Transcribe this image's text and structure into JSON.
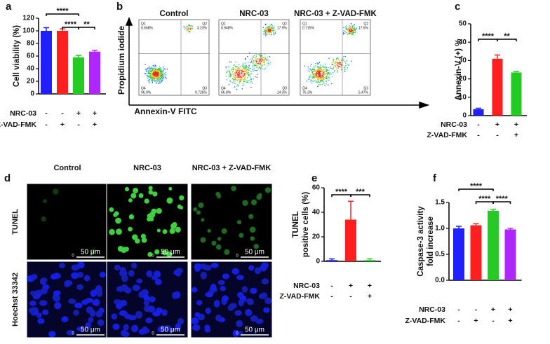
{
  "chart_data": [
    {
      "type": "bar",
      "label": "a",
      "ylabel": "Cell viability (%)",
      "ylim": [
        0,
        120
      ],
      "yticks": [
        0,
        20,
        40,
        60,
        80,
        100,
        120
      ],
      "values": [
        100,
        100,
        58,
        67
      ],
      "errors": [
        5,
        3,
        3,
        2
      ],
      "colors": [
        "#1f1fff",
        "#ff1f1f",
        "#22cc22",
        "#b026ff"
      ],
      "conditions": [
        {
          "name": "NRC-03",
          "values": [
            "-",
            "-",
            "+",
            "+"
          ]
        },
        {
          "name": "Z-VAD-FMK",
          "values": [
            "-",
            "+",
            "-",
            "+"
          ]
        }
      ],
      "significance": [
        {
          "pair": [
            0,
            2
          ],
          "label": "****"
        },
        {
          "pair": [
            1,
            2
          ],
          "label": "****"
        },
        {
          "pair": [
            2,
            3
          ],
          "label": "**"
        }
      ]
    },
    {
      "type": "bar",
      "label": "c",
      "ylabel": "Annexin-V (+) %",
      "ylim": [
        0,
        50
      ],
      "yticks": [
        0,
        10,
        20,
        30,
        40,
        50
      ],
      "values": [
        3.5,
        31,
        23.5
      ],
      "errors": [
        0.5,
        2,
        0.5
      ],
      "colors": [
        "#1f1fff",
        "#ff1f1f",
        "#22cc22"
      ],
      "conditions": [
        {
          "name": "NRC-03",
          "values": [
            "-",
            "+",
            "+"
          ]
        },
        {
          "name": "Z-VAD-FMK",
          "values": [
            "-",
            "-",
            "+"
          ]
        }
      ],
      "significance": [
        {
          "pair": [
            0,
            1
          ],
          "label": "****"
        },
        {
          "pair": [
            1,
            2
          ],
          "label": "**"
        }
      ]
    },
    {
      "type": "bar",
      "label": "e",
      "ylabel": [
        "TUNEL",
        "positive cells (%)"
      ],
      "ylim": [
        0,
        60
      ],
      "yticks": [
        0,
        20,
        40,
        60
      ],
      "values": [
        1,
        34,
        1
      ],
      "errors": [
        1,
        15,
        1
      ],
      "colors": [
        "#1f1fff",
        "#ff1f1f",
        "#22cc22"
      ],
      "conditions": [
        {
          "name": "NRC-03",
          "values": [
            "-",
            "+",
            "+"
          ]
        },
        {
          "name": "Z-VAD-FMK",
          "values": [
            "-",
            "-",
            "+"
          ]
        }
      ],
      "significance": [
        {
          "pair": [
            0,
            1
          ],
          "label": "****"
        },
        {
          "pair": [
            1,
            2
          ],
          "label": "***"
        }
      ]
    },
    {
      "type": "bar",
      "label": "f",
      "ylabel": [
        "Caspase-3 activity",
        "fold increase"
      ],
      "ylim": [
        0,
        1.5
      ],
      "yticks": [
        {
          "value": 0,
          "label": "0.0"
        },
        0.5,
        {
          "value": 1,
          "label": "1.0"
        },
        1.5
      ],
      "values": [
        1.0,
        1.06,
        1.34,
        0.98
      ],
      "errors": [
        0.04,
        0.03,
        0.03,
        0.02
      ],
      "colors": [
        "#1f1fff",
        "#ff1f1f",
        "#22cc22",
        "#b026ff"
      ],
      "conditions": [
        {
          "name": "NRC-03",
          "values": [
            "-",
            "-",
            "+",
            "+"
          ]
        },
        {
          "name": "Z-VAD-FMK",
          "values": [
            "-",
            "+",
            "-",
            "+"
          ]
        }
      ],
      "significance": [
        {
          "pair": [
            0,
            2
          ],
          "label": "****"
        },
        {
          "pair": [
            1,
            2
          ],
          "label": "****"
        },
        {
          "pair": [
            2,
            3
          ],
          "label": "****"
        }
      ]
    }
  ],
  "flow_panel": {
    "label": "b",
    "ylabel": "Propidium iodide",
    "xlabel": "Annexin-V FITC",
    "plots": [
      {
        "title": "Control",
        "quadrants": [
          {
            "name": "Q1",
            "value": "0.668%"
          },
          {
            "name": "Q2",
            "value": "3.23%"
          },
          {
            "name": "Q3",
            "value": "0.726%"
          },
          {
            "name": "Q4",
            "value": "96.0%"
          }
        ]
      },
      {
        "title": "NRC-03",
        "quadrants": [
          {
            "name": "Q1",
            "value": "0.948%"
          },
          {
            "name": "Q2",
            "value": "17.9%"
          },
          {
            "name": "Q3",
            "value": "14.3%"
          },
          {
            "name": "Q4",
            "value": "66.8%"
          }
        ]
      },
      {
        "title": "NRC-03 + Z-VAD-FMK",
        "quadrants": [
          {
            "name": "Q1",
            "value": "0.715%"
          },
          {
            "name": "Q2",
            "value": "17.6%"
          },
          {
            "name": "Q3",
            "value": "5.47%"
          },
          {
            "name": "Q4",
            "value": "76.3%"
          }
        ]
      }
    ]
  },
  "image_panel": {
    "label": "d",
    "columns": [
      "Control",
      "NRC-03",
      "NRC-03 + Z-VAD-FMK"
    ],
    "rows": [
      "TUNEL",
      "Hoechst 33342"
    ],
    "scale_bar": "50 μm",
    "scale_zero": "0"
  }
}
